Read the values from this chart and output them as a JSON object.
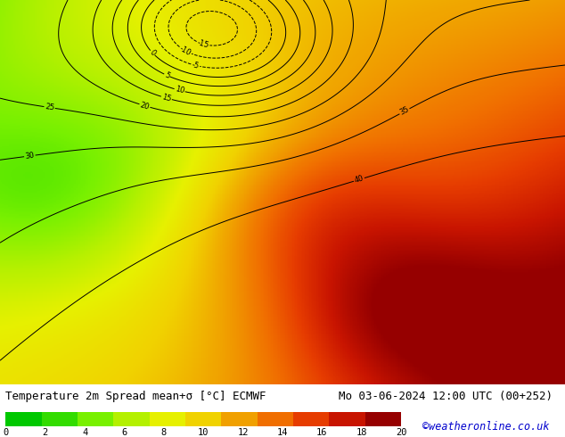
{
  "title_left": "Temperature 2m Spread mean+σ [°C] ECMWF",
  "title_right": "Mo 03-06-2024 12:00 UTC (00+252)",
  "colorbar_ticks": [
    0,
    2,
    4,
    6,
    8,
    10,
    12,
    14,
    16,
    18,
    20
  ],
  "colorbar_colors": [
    "#00c800",
    "#32dc00",
    "#78f000",
    "#b4f000",
    "#e6f000",
    "#f0d200",
    "#f0a000",
    "#f06e00",
    "#e63c00",
    "#c81400",
    "#960000"
  ],
  "watermark": "©weatheronline.co.uk",
  "bg_color": "#ffffff",
  "title_fontsize": 9,
  "watermark_color": "#0000cd",
  "lon_min": -30,
  "lon_max": 55,
  "lat_min": 27,
  "lat_max": 73
}
